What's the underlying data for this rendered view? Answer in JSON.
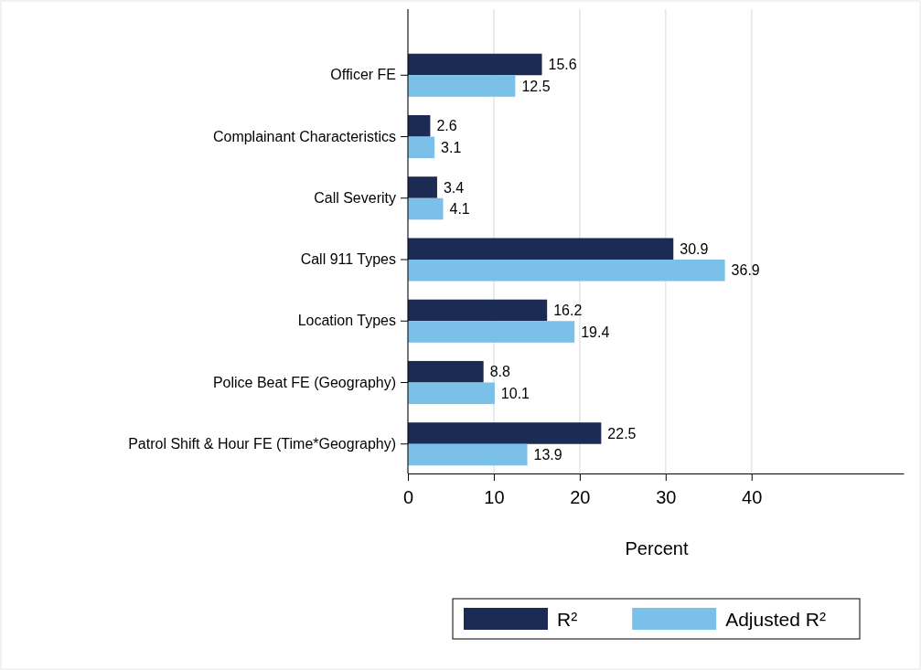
{
  "chart_data": {
    "type": "bar",
    "orientation": "horizontal",
    "xlabel": "Percent",
    "categories": [
      "Officer FE",
      "Complainant Characteristics",
      "Call Severity",
      "Call 911 Types",
      "Location Types",
      "Police Beat FE (Geography)",
      "Patrol Shift & Hour FE (Time*Geography)"
    ],
    "series": [
      {
        "name": "R²",
        "color": "#1c2b53",
        "values": [
          15.6,
          2.6,
          3.4,
          30.9,
          16.2,
          8.8,
          22.5
        ]
      },
      {
        "name": "Adjusted R²",
        "color": "#7bc0e8",
        "values": [
          12.5,
          3.1,
          4.1,
          36.9,
          19.4,
          10.1,
          13.9
        ]
      }
    ],
    "xlim": [
      0,
      57.7
    ],
    "xticks": [
      0,
      10,
      20,
      30,
      40
    ],
    "grid": "x",
    "data_labels": true,
    "legend": "bottom"
  }
}
